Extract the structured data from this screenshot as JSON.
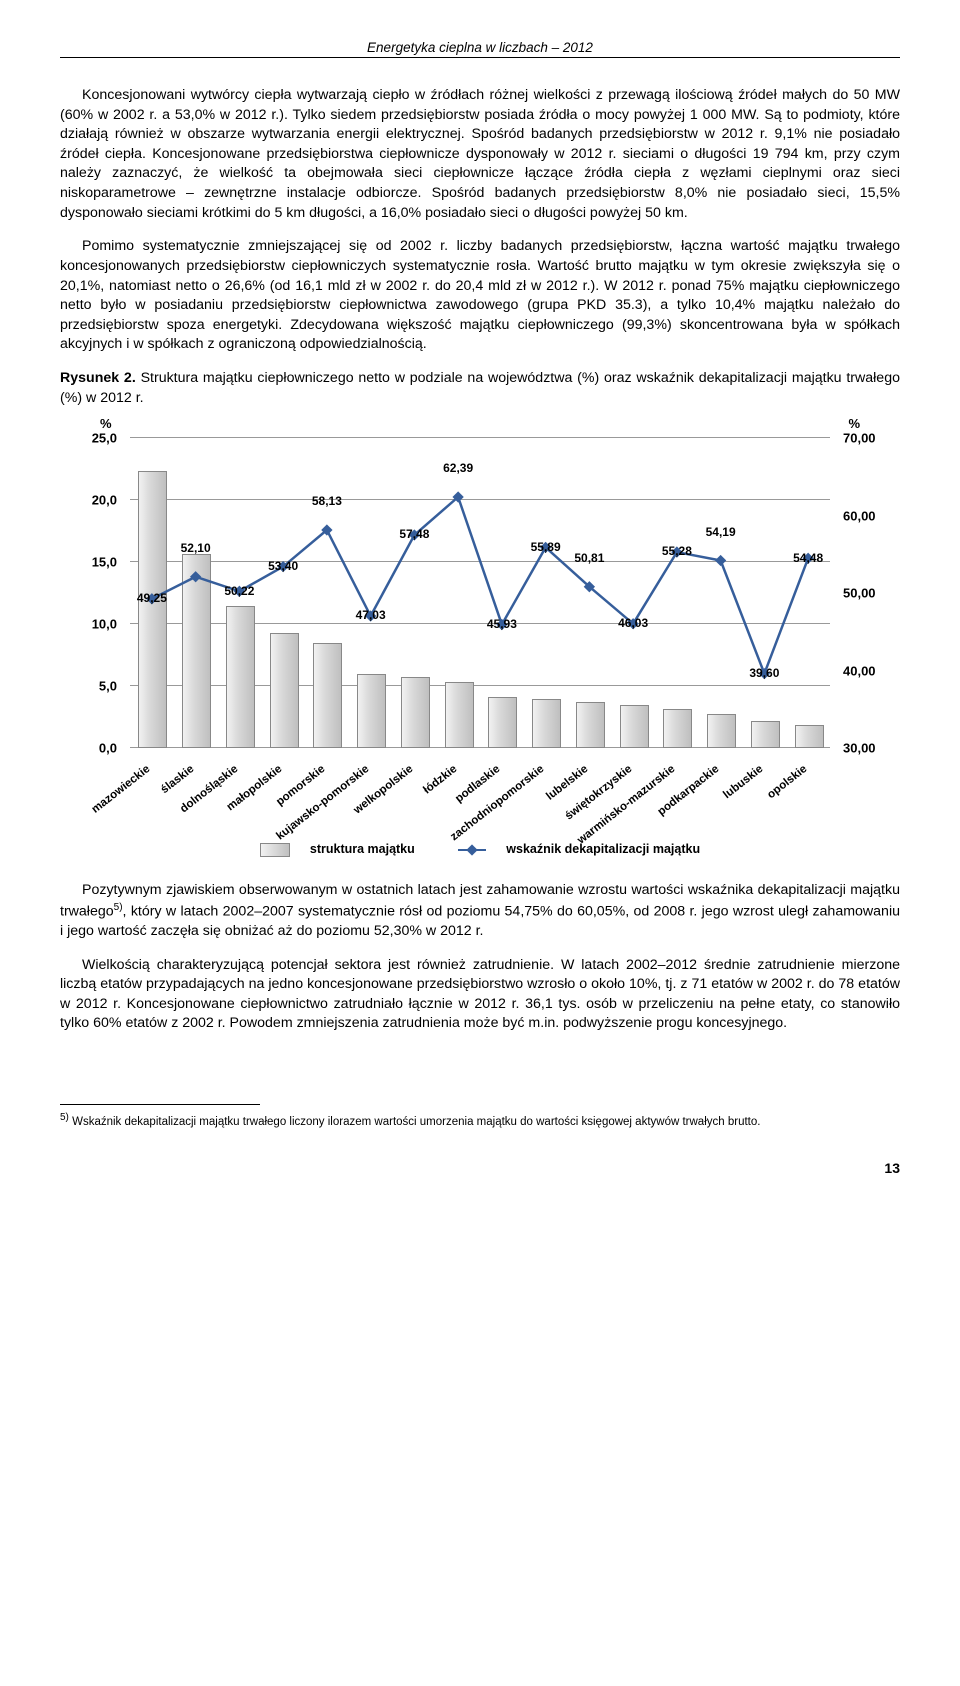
{
  "header": "Energetyka cieplna w liczbach – 2012",
  "para1": "Koncesjonowani wytwórcy ciepła wytwarzają ciepło w źródłach różnej wielkości z przewagą ilościową źródeł małych do 50 MW (60% w 2002 r. a 53,0% w 2012 r.). Tylko siedem przedsiębiorstw posiada źródła o mocy powyżej 1 000 MW. Są to podmioty, które działają również w obszarze wytwarzania energii elektrycznej. Spośród badanych przedsiębiorstw w 2012 r. 9,1% nie posiadało źródeł ciepła. Koncesjonowane przedsiębiorstwa ciepłownicze dysponowały w 2012 r. sieciami o długości 19 794 km, przy czym należy zaznaczyć, że wielkość ta obejmowała sieci ciepłownicze łączące źródła ciepła z węzłami cieplnymi oraz sieci niskoparametrowe – zewnętrzne instalacje odbiorcze. Spośród badanych przedsiębiorstw 8,0% nie posiadało sieci, 15,5% dysponowało sieciami krótkimi do 5 km długości, a 16,0% posiadało sieci o długości powyżej 50 km.",
  "para2": "Pomimo systematycznie zmniejszającej się od 2002 r. liczby badanych przedsiębiorstw, łączna wartość majątku trwałego koncesjonowanych przedsiębiorstw ciepłowniczych systematycznie rosła. Wartość brutto majątku w tym okresie zwiększyła się o 20,1%, natomiast netto o 26,6% (od 16,1 mld zł w 2002 r. do 20,4 mld zł w 2012 r.). W 2012 r. ponad 75% majątku ciepłowniczego netto było w posiadaniu przedsiębiorstw ciepłownictwa zawodowego (grupa PKD 35.3), a tylko 10,4% majątku należało do przedsiębiorstw spoza energetyki. Zdecydowana większość majątku ciepłowniczego (99,3%) skoncentrowana była w spółkach akcyjnych i w spółkach z ograniczoną odpowiedzialnością.",
  "fig_label": "Rysunek 2.",
  "fig_caption": "Struktura majątku ciepłowniczego netto w podziale na województwa (%) oraz wskaźnik dekapitalizacji majątku trwałego (%) w 2012 r.",
  "chart": {
    "categories": [
      "mazowieckie",
      "ślaskie",
      "dolnośląskie",
      "małopolskie",
      "pomorskie",
      "kujawsko-pomorskie",
      "welkopolskie",
      "łódzkie",
      "podlaskie",
      "zachodniopomorskie",
      "lubelskie",
      "świętokrzyskie",
      "warmińsko-mazurskie",
      "podkarpackie",
      "lubuskie",
      "opolskie"
    ],
    "bar_values": [
      22.2,
      15.5,
      11.3,
      9.1,
      8.3,
      5.8,
      5.6,
      5.2,
      4.0,
      3.8,
      3.6,
      3.3,
      3.0,
      2.6,
      2.0,
      1.7
    ],
    "line_values": [
      49.25,
      52.1,
      50.22,
      53.4,
      58.13,
      47.03,
      57.48,
      62.39,
      45.93,
      55.89,
      50.81,
      46.03,
      55.28,
      54.19,
      39.6,
      54.48
    ],
    "left_axis": {
      "title": "%",
      "min": 0,
      "max": 25,
      "step": 5,
      "ticks": [
        "0,0",
        "5,0",
        "10,0",
        "15,0",
        "20,0",
        "25,0"
      ]
    },
    "right_axis": {
      "title": "%",
      "min": 30,
      "max": 70,
      "step": 10,
      "ticks": [
        "30,00",
        "40,00",
        "50,00",
        "60,00",
        "70,00"
      ]
    },
    "line_labels": [
      "49,25",
      "52,10",
      "50,22",
      "53,40",
      "58,13",
      "47,03",
      "57,48",
      "62,39",
      "45,93",
      "55,89",
      "50,81",
      "46,03",
      "55,28",
      "54,19",
      "39,60",
      "54,48"
    ],
    "bar_color_from": "#f2f2f2",
    "bar_color_to": "#bfbfbf",
    "bar_border": "#888888",
    "line_color": "#365e9b",
    "grid_color": "#999999",
    "legend_bar": "struktura majątku",
    "legend_line": "wskaźnik dekapitalizacji majątku"
  },
  "para3": "Pozytywnym zjawiskiem obserwowanym w ostatnich latach jest zahamowanie wzrostu wartości wskaźnika dekapitalizacji majątku trwałego",
  "para3_sup": "5)",
  "para3_cont": ", który w latach 2002–2007 systematycznie rósł od poziomu 54,75% do 60,05%, od 2008 r. jego wzrost uległ zahamowaniu i jego wartość zaczęła się obniżać aż do poziomu 52,30% w 2012 r.",
  "para4": "Wielkością charakteryzującą potencjał sektora jest również zatrudnienie. W latach 2002–2012 średnie zatrudnienie mierzone liczbą etatów przypadających na jedno koncesjonowane przedsiębiorstwo wzrosło o około 10%, tj. z 71 etatów w 2002 r. do 78 etatów w 2012 r. Koncesjonowane ciepłownictwo zatrudniało łącznie w 2012 r. 36,1 tys. osób w przeliczeniu na pełne etaty, co stanowiło tylko 60% etatów z 2002 r. Powodem zmniejszenia zatrudnienia może być m.in. podwyższenie progu koncesyjnego.",
  "footnote_marker": "5)",
  "footnote": " Wskaźnik dekapitalizacji majątku trwałego liczony ilorazem wartości umorzenia majątku do wartości księgowej aktywów trwałych brutto.",
  "page_number": "13"
}
